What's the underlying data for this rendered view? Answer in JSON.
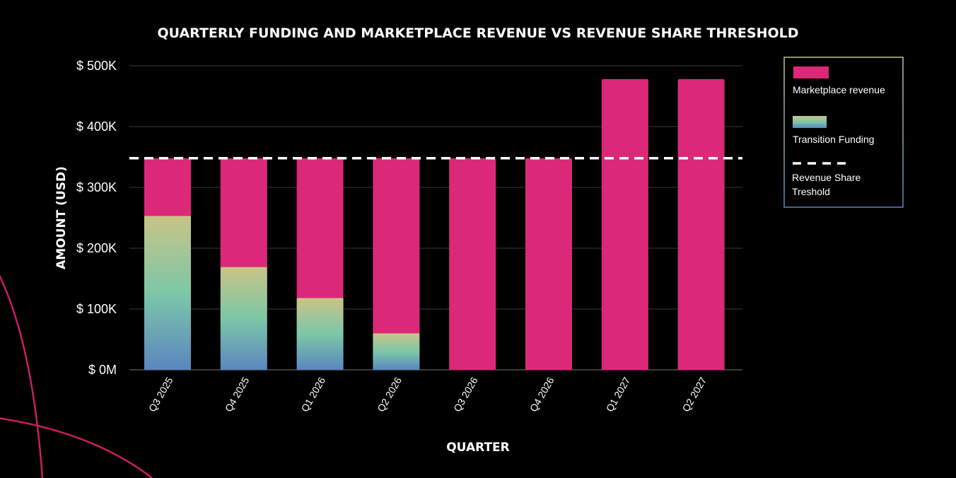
{
  "chart_data": {
    "type": "bar",
    "stacked": true,
    "title": "QUARTERLY FUNDING AND MARKETPLACE REVENUE VS REVENUE SHARE THRESHOLD",
    "xlabel": "QUARTER",
    "ylabel": "AMOUNT (USD)",
    "categories": [
      "Q3 2025",
      "Q4 2025",
      "Q1 2026",
      "Q2 2026",
      "Q3 2026",
      "Q4 2026",
      "Q1 2027",
      "Q2 2027"
    ],
    "series": [
      {
        "name": "Transition Funding",
        "values": [
          253,
          169,
          118,
          60,
          0,
          0,
          0,
          0
        ]
      },
      {
        "name": "Marketplace revenue",
        "values": [
          95,
          179,
          230,
          288,
          348,
          348,
          478,
          478
        ]
      }
    ],
    "threshold": {
      "name": "Revenue Share Treshold",
      "value": 348
    },
    "units": "thousands of USD",
    "ylim": [
      0,
      500
    ],
    "yticks": [
      0,
      100,
      200,
      300,
      400,
      500
    ],
    "ytick_labels": [
      "$ 0M",
      "$ 100K",
      "$ 200K",
      "$ 300K",
      "$ 400K",
      "$ 500K"
    ],
    "grid": true,
    "legend_position": "top-right",
    "colors": {
      "marketplace": "#dc2878",
      "funding_top": "#c8c486",
      "funding_mid": "#7cc7a8",
      "funding_bottom": "#5b86c0",
      "threshold": "#ffffff",
      "grid": "#3a3a3a",
      "decor_arc": "#c81e64"
    }
  }
}
